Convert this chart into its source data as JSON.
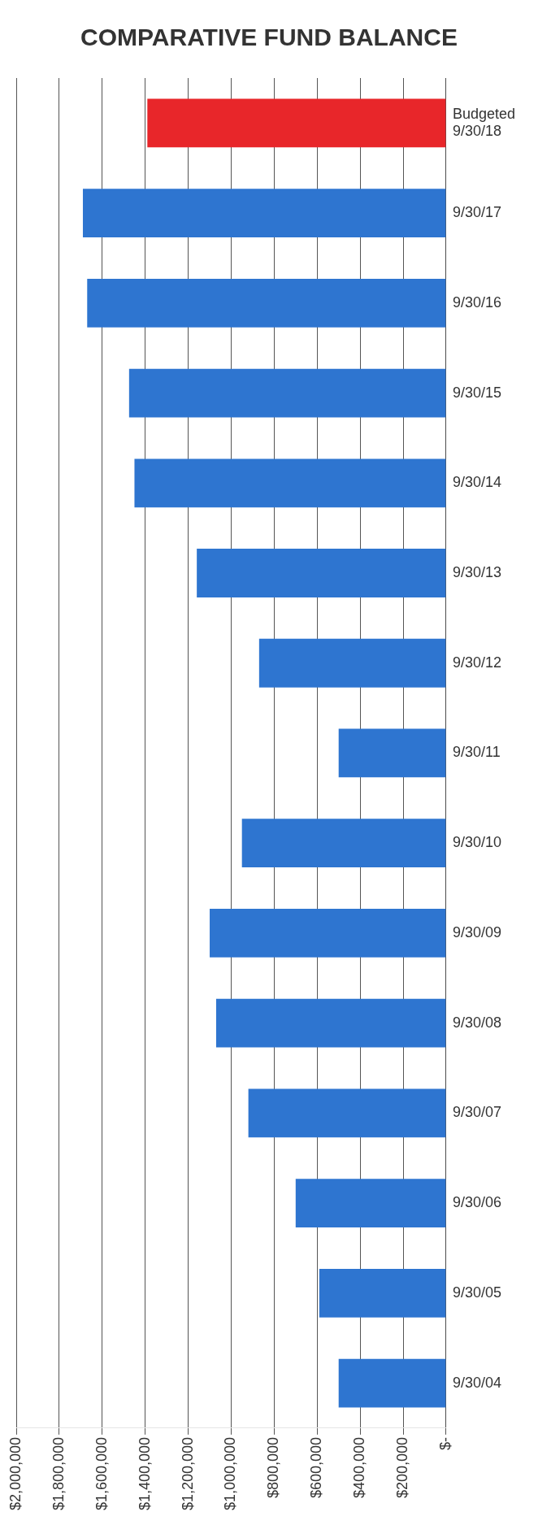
{
  "chart_data": {
    "type": "bar",
    "title": "COMPARATIVE FUND BALANCE",
    "orientation": "horizontal",
    "categories": [
      "Budgeted 9/30/18",
      "9/30/17",
      "9/30/16",
      "9/30/15",
      "9/30/14",
      "9/30/13",
      "9/30/12",
      "9/30/11",
      "9/30/10",
      "9/30/09",
      "9/30/08",
      "9/30/07",
      "9/30/06",
      "9/30/05",
      "9/30/04"
    ],
    "values": [
      1390000,
      1690000,
      1670000,
      1475000,
      1450000,
      1160000,
      870000,
      500000,
      950000,
      1100000,
      1070000,
      920000,
      700000,
      590000,
      500000
    ],
    "colors": [
      "#e8262a",
      "#2e75d0",
      "#2e75d0",
      "#2e75d0",
      "#2e75d0",
      "#2e75d0",
      "#2e75d0",
      "#2e75d0",
      "#2e75d0",
      "#2e75d0",
      "#2e75d0",
      "#2e75d0",
      "#2e75d0",
      "#2e75d0",
      "#2e75d0"
    ],
    "xlim": [
      2000000,
      0
    ],
    "xticks": [
      {
        "value": 2000000,
        "label": "$2,000,000"
      },
      {
        "value": 1800000,
        "label": "$1,800,000"
      },
      {
        "value": 1600000,
        "label": "$1,600,000"
      },
      {
        "value": 1400000,
        "label": "$1,400,000"
      },
      {
        "value": 1200000,
        "label": "$1,200,000"
      },
      {
        "value": 1000000,
        "label": "$1,000,000"
      },
      {
        "value": 800000,
        "label": "$800,000"
      },
      {
        "value": 600000,
        "label": "$600,000"
      },
      {
        "value": 400000,
        "label": "$400,000"
      },
      {
        "value": 200000,
        "label": "$200,000"
      },
      {
        "value": 0,
        "label": "$-"
      }
    ],
    "grid": "x",
    "legend": false
  }
}
